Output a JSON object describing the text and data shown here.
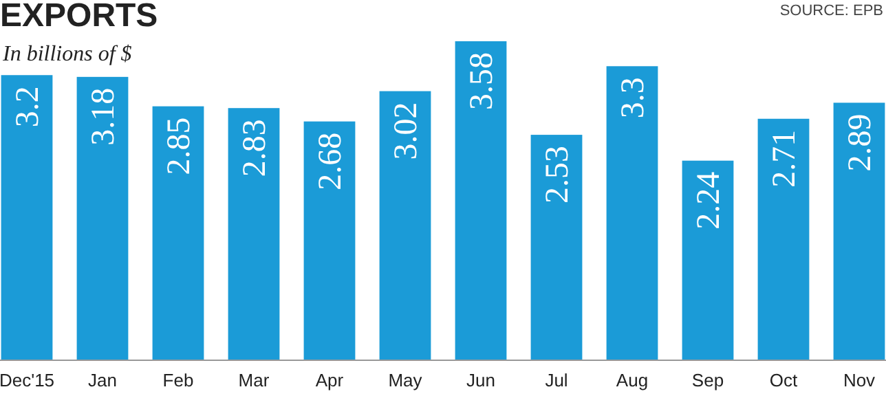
{
  "chart_data": {
    "type": "bar",
    "title": "EXPORTS",
    "subtitle": "In billions of $",
    "annotations": [
      "SOURCE: EPB"
    ],
    "categories": [
      "Dec'15",
      "Jan",
      "Feb",
      "Mar",
      "Apr",
      "May",
      "Jun",
      "Jul",
      "Aug",
      "Sep",
      "Oct",
      "Nov"
    ],
    "values": [
      3.2,
      3.18,
      2.85,
      2.83,
      2.68,
      3.02,
      3.58,
      2.53,
      3.3,
      2.24,
      2.71,
      2.89
    ],
    "color": "#1b9bd7",
    "data_labels": true
  }
}
